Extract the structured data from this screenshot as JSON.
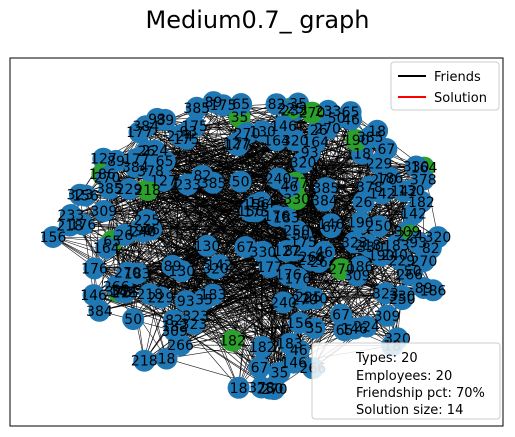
{
  "figure": {
    "title": "Medium0.7_ graph"
  },
  "legend": {
    "items": [
      {
        "label": "Friends",
        "color": "#000000"
      },
      {
        "label": "Solution",
        "color": "#ff0000"
      }
    ]
  },
  "stats": {
    "lines": [
      "Types: 20",
      "Employees: 20",
      "Friendship pct: 70%",
      "Solution size: 14"
    ]
  },
  "colors": {
    "node_default": "#1f77b4",
    "node_solution": "#2ca02c",
    "edge": "#000000"
  },
  "chart_data": {
    "type": "network",
    "title": "Medium0.7_ graph",
    "legend_placement": "top-right",
    "stats_placement": "bottom-right",
    "visible_node_labels": [
      "177",
      "270",
      "46",
      "26",
      "89",
      "146",
      "65",
      "175",
      "218",
      "67",
      "320",
      "309",
      "323",
      "384",
      "385",
      "378",
      "229",
      "240",
      "183",
      "266",
      "330",
      "270",
      "142",
      "93",
      "82",
      "50",
      "35",
      "18",
      "176",
      "164",
      "156",
      "225",
      "224",
      "182",
      "190",
      "130",
      "127",
      "186",
      "233",
      "250"
    ],
    "solution_node_count": 14
  }
}
